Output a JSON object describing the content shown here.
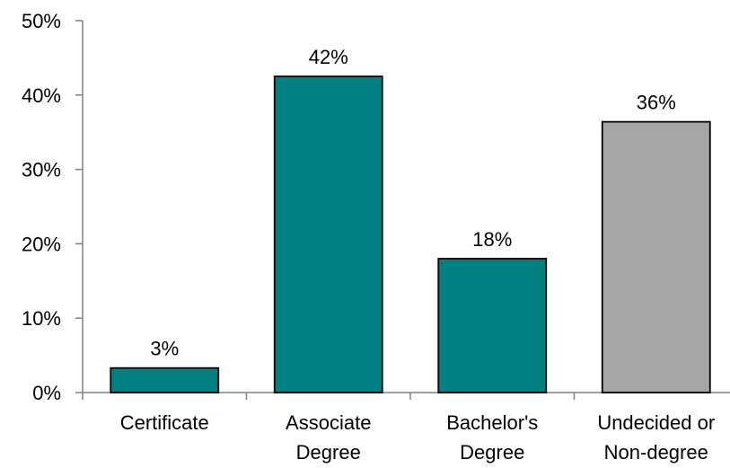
{
  "chart_data": {
    "type": "bar",
    "categories": [
      [
        "Certificate"
      ],
      [
        "Associate",
        "Degree"
      ],
      [
        "Bachelor's",
        "Degree"
      ],
      [
        "Undecided or",
        "Non-degree"
      ]
    ],
    "values": [
      3.3,
      42.5,
      18,
      36.4
    ],
    "data_labels": [
      "3%",
      "42%",
      "18%",
      "36%"
    ],
    "bar_colors": [
      "#008080",
      "#008080",
      "#008080",
      "#a6a6a6"
    ],
    "ylim": [
      0,
      50
    ],
    "yticks": [
      0,
      10,
      20,
      30,
      40,
      50
    ],
    "ytick_labels": [
      "0%",
      "10%",
      "20%",
      "30%",
      "40%",
      "50%"
    ],
    "title": "",
    "xlabel": "",
    "ylabel": "",
    "grid": false,
    "legend": "none"
  }
}
